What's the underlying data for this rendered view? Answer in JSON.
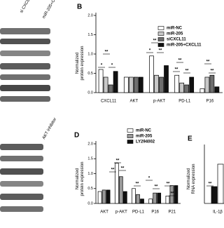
{
  "figure": {
    "blot_labels": [
      "si CXCL11",
      "miR-205+CXCL11",
      "AKT inhibitor"
    ]
  },
  "chart_data": [
    {
      "type": "bar",
      "panel": "B",
      "ylabel": "Normalized\nprotein expression",
      "categories": [
        "CXCL11",
        "AKT",
        "p-AKT",
        "PD-L1",
        "P16"
      ],
      "series": [
        {
          "name": "miR-NC",
          "color": "#ffffff",
          "values": [
            0.6,
            0.4,
            0.95,
            0.45,
            0.1
          ]
        },
        {
          "name": "miR-205",
          "color": "#c8c8c8",
          "values": [
            0.4,
            0.4,
            0.45,
            0.25,
            0.4
          ]
        },
        {
          "name": "siCXCL11",
          "color": "#6e6e6e",
          "values": [
            0.2,
            0.4,
            0.4,
            0.2,
            0.45
          ]
        },
        {
          "name": "miR-205+CXCL11",
          "color": "#111111",
          "values": [
            0.55,
            0.4,
            0.7,
            0.4,
            0.15
          ]
        }
      ],
      "ylim": [
        0,
        2
      ],
      "yticks": [
        {
          "value": 0,
          "label": "0.0"
        },
        {
          "value": 0.5,
          "label": "0.5"
        },
        {
          "value": 1,
          "label": "1.0"
        },
        {
          "value": 1.5,
          "label": "1.5"
        },
        {
          "value": 2,
          "label": "2.0"
        }
      ],
      "annotations": [
        "**",
        "*",
        "*",
        "**",
        "*",
        "**",
        "**",
        "**",
        "**",
        "**",
        "**"
      ]
    },
    {
      "type": "bar",
      "panel": "D",
      "ylabel": "Normalized\nprotein expression",
      "categories": [
        "AKT",
        "p-AKT",
        "PD-L1",
        "P16",
        "P21"
      ],
      "series": [
        {
          "name": "miR-NC",
          "color": "#ffffff",
          "values": [
            0.4,
            1.35,
            0.5,
            0.15,
            0.25
          ]
        },
        {
          "name": "miR-205",
          "color": "#9a9a9a",
          "values": [
            0.45,
            0.9,
            0.3,
            0.35,
            0.6
          ]
        },
        {
          "name": "LY294002",
          "color": "#111111",
          "values": [
            0.45,
            0.4,
            0.15,
            0.35,
            0.6
          ]
        }
      ],
      "ylim": [
        0,
        2
      ],
      "yticks": [
        {
          "value": 0,
          "label": "0.0"
        },
        {
          "value": 0.5,
          "label": "0.5"
        },
        {
          "value": 1,
          "label": "1.0"
        },
        {
          "value": 1.5,
          "label": "1.5"
        },
        {
          "value": 2,
          "label": "2.0"
        }
      ],
      "annotations": [
        "**",
        "**",
        "**",
        "**",
        "*",
        "**",
        "**",
        "**"
      ]
    },
    {
      "type": "bar",
      "panel": "E",
      "ylabel": "Normalized\nRNA expression",
      "categories": [
        "IL-1β"
      ],
      "series": [
        {
          "color": "#111111",
          "values": [
            0.9
          ]
        },
        {
          "color": "#ffffff",
          "values": [
            2.1
          ]
        }
      ],
      "ylim": [
        0,
        3
      ],
      "annotations": [
        "**"
      ]
    }
  ]
}
